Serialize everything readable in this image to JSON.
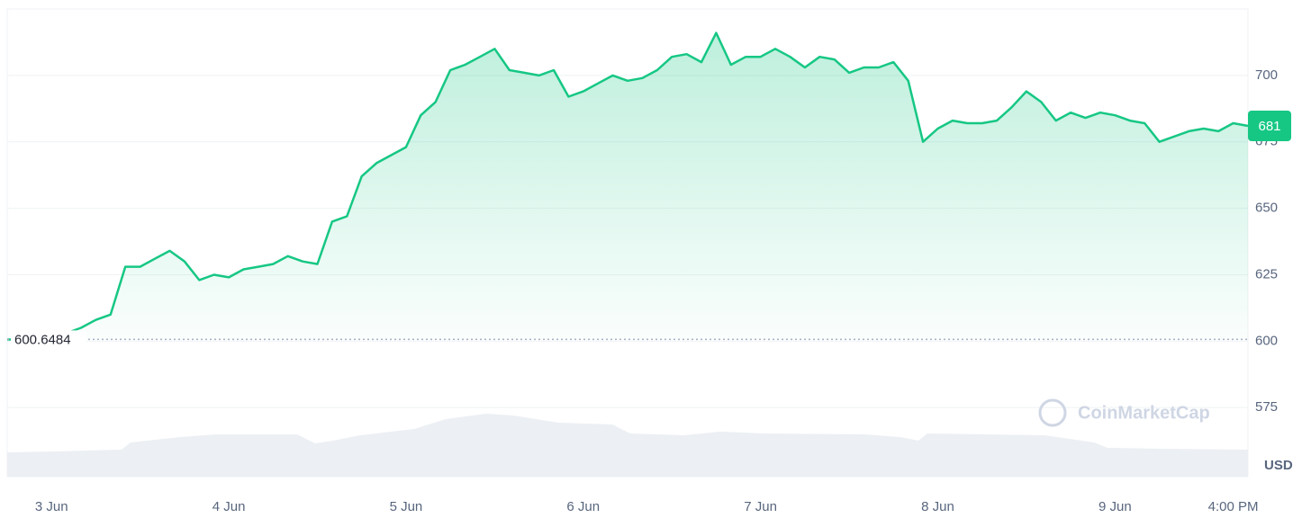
{
  "chart_data": {
    "type": "area",
    "categories": [
      null,
      null,
      null,
      "3 Jun",
      null,
      null,
      null,
      null,
      null,
      null,
      null,
      null,
      null,
      null,
      null,
      "4 Jun",
      null,
      null,
      null,
      null,
      null,
      null,
      null,
      null,
      null,
      null,
      null,
      "5 Jun",
      null,
      null,
      null,
      null,
      null,
      null,
      null,
      null,
      null,
      null,
      null,
      "6 Jun",
      null,
      null,
      null,
      null,
      null,
      null,
      null,
      null,
      null,
      null,
      null,
      "7 Jun",
      null,
      null,
      null,
      null,
      null,
      null,
      null,
      null,
      null,
      null,
      null,
      "8 Jun",
      null,
      null,
      null,
      null,
      null,
      null,
      null,
      null,
      null,
      null,
      null,
      "9 Jun",
      null,
      null,
      null,
      null,
      null,
      null,
      null,
      "4:00 PM",
      null
    ],
    "values": [
      600.6,
      600.6,
      601.5,
      602,
      603,
      605,
      608,
      610,
      628,
      628,
      631,
      634,
      630,
      623,
      625,
      624,
      627,
      628,
      629,
      632,
      630,
      629,
      645,
      647,
      662,
      667,
      670,
      673,
      685,
      690,
      702,
      704,
      707,
      710,
      702,
      701,
      700,
      702,
      692,
      694,
      697,
      700,
      698,
      699,
      702,
      707,
      708,
      705,
      716,
      704,
      707,
      707,
      710,
      707,
      703,
      707,
      706,
      701,
      703,
      703,
      705,
      698,
      675,
      680,
      683,
      682,
      682,
      683,
      688,
      694,
      690,
      683,
      686,
      684,
      686,
      685,
      683,
      682,
      675,
      677,
      679,
      680,
      679,
      682,
      681
    ],
    "color": "#16c784",
    "ylim": [
      549,
      725
    ],
    "yticks": [
      575,
      600,
      625,
      650,
      675,
      700
    ],
    "grid": true,
    "baseline": 600.6484,
    "current_price": 681,
    "y_axis_label": "USD",
    "watermark": "CoinMarketCap"
  }
}
